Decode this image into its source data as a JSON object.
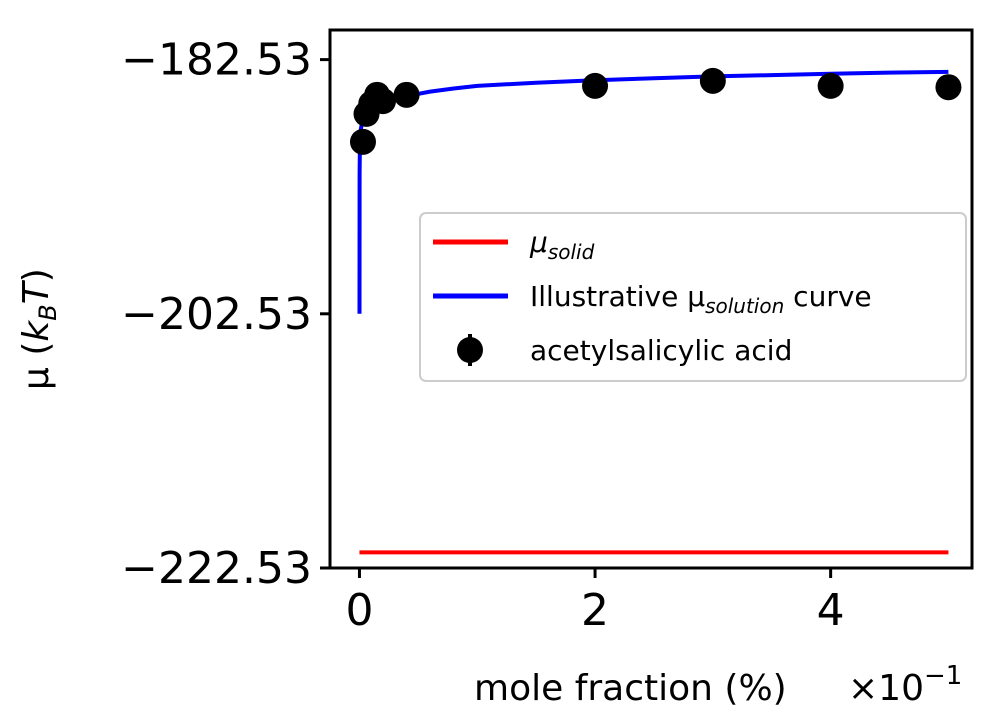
{
  "chart_data": {
    "type": "scatter",
    "xlabel": "mole fraction (%)",
    "x_multiplier": "×10",
    "x_multiplier_exponent": "−1",
    "ylabel_symbol": "μ",
    "ylabel_units": "k",
    "ylabel_units_sub": "B",
    "ylabel_units_tail": "T",
    "xlim": [
      -0.25,
      5.2
    ],
    "ylim": [
      -222.53,
      -180.2
    ],
    "x_ticks": [
      0,
      2,
      4
    ],
    "x_tick_labels": [
      "0",
      "2",
      "4"
    ],
    "y_ticks": [
      -222.53,
      -202.53,
      -182.53
    ],
    "y_tick_labels": [
      "−222.53",
      "−202.53",
      "−182.53"
    ],
    "grid": false,
    "legend_position": "center-right",
    "series": [
      {
        "name": "μ",
        "name_sub": "solid",
        "kind": "hline",
        "color": "#ff0000",
        "y": -221.3,
        "x_range": [
          0,
          5
        ]
      },
      {
        "name": "Illustrative μ",
        "name_sub": "solution",
        "name_tail": " curve",
        "kind": "curve",
        "color": "#0000ff",
        "x": [
          0.0001,
          0.001,
          0.005,
          0.01,
          0.02,
          0.05,
          0.1,
          0.2,
          0.3,
          0.4,
          0.6,
          0.8,
          1.0,
          1.5,
          2.0,
          2.5,
          3.0,
          3.5,
          4.0,
          4.5,
          5.0
        ],
        "y": [
          -202.53,
          -191.5,
          -188.7,
          -188.1,
          -187.6,
          -186.9,
          -186.4,
          -185.9,
          -185.6,
          -185.4,
          -185.05,
          -184.8,
          -184.6,
          -184.35,
          -184.15,
          -184.0,
          -183.85,
          -183.75,
          -183.65,
          -183.55,
          -183.5
        ]
      },
      {
        "name": "acetylsalicylic acid",
        "kind": "points",
        "color": "#000000",
        "x": [
          0.03,
          0.06,
          0.1,
          0.15,
          0.2,
          0.4,
          2.0,
          3.0,
          4.0,
          5.0
        ],
        "y": [
          -189.0,
          -186.8,
          -186.0,
          -185.3,
          -185.8,
          -185.3,
          -184.6,
          -184.2,
          -184.6,
          -184.7
        ]
      }
    ]
  }
}
